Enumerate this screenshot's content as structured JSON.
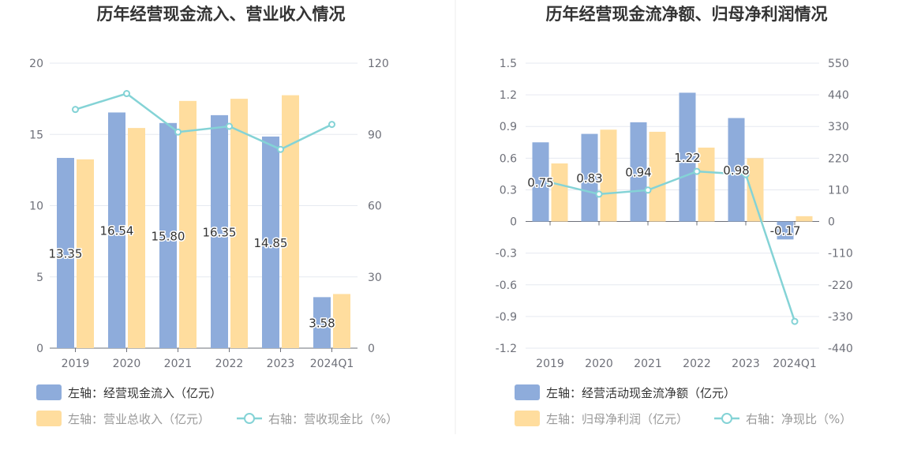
{
  "chart_data": [
    {
      "type": "bar",
      "title": "历年经营现金流入、营业收入情况",
      "categories": [
        "2019",
        "2020",
        "2021",
        "2022",
        "2023",
        "2024Q1"
      ],
      "series": [
        {
          "name": "左轴：经营现金流入（亿元）",
          "axis": "left",
          "kind": "bar",
          "color": "#8eacdb",
          "values": [
            13.35,
            16.54,
            15.8,
            16.35,
            14.85,
            3.58
          ],
          "labels": [
            "13.35",
            "16.54",
            "15.80",
            "16.35",
            "14.85",
            "3.58"
          ]
        },
        {
          "name": "左轴：营业总收入（亿元）",
          "axis": "left",
          "kind": "bar",
          "color": "#ffdd9e",
          "values": [
            13.25,
            15.45,
            17.35,
            17.5,
            17.75,
            3.8
          ]
        },
        {
          "name": "右轴：营收现金比（%）",
          "axis": "right",
          "kind": "line",
          "color": "#84d3d6",
          "values": [
            100.5,
            107.2,
            91.0,
            93.4,
            83.7,
            94.2
          ]
        }
      ],
      "left_axis": {
        "ticks": [
          "0",
          "5",
          "10",
          "15",
          "20"
        ],
        "min": 0,
        "max": 20
      },
      "right_axis": {
        "ticks": [
          "0",
          "30",
          "60",
          "90",
          "120"
        ],
        "min": 0,
        "max": 120
      }
    },
    {
      "type": "bar",
      "title": "历年经营现金流净额、归母净利润情况",
      "categories": [
        "2019",
        "2020",
        "2021",
        "2022",
        "2023",
        "2024Q1"
      ],
      "series": [
        {
          "name": "左轴：经营活动现金流净额（亿元）",
          "axis": "left",
          "kind": "bar",
          "color": "#8eacdb",
          "values": [
            0.75,
            0.83,
            0.94,
            1.22,
            0.98,
            -0.17
          ],
          "labels": [
            "0.75",
            "0.83",
            "0.94",
            "1.22",
            "0.98",
            "-0.17"
          ]
        },
        {
          "name": "左轴：归母净利润（亿元）",
          "axis": "left",
          "kind": "bar",
          "color": "#ffdd9e",
          "values": [
            0.55,
            0.87,
            0.85,
            0.7,
            0.6,
            0.05
          ]
        },
        {
          "name": "右轴：净现比（%）",
          "axis": "right",
          "kind": "line",
          "color": "#84d3d6",
          "values": [
            136,
            95,
            109,
            174,
            163,
            -347
          ]
        }
      ],
      "left_axis": {
        "ticks": [
          "-1.2",
          "-0.9",
          "-0.6",
          "-0.3",
          "0",
          "0.3",
          "0.6",
          "0.9",
          "1.2",
          "1.5"
        ],
        "min": -1.2,
        "max": 1.5
      },
      "right_axis": {
        "ticks": [
          "-440",
          "-330",
          "-220",
          "-110",
          "0",
          "110",
          "220",
          "330",
          "440",
          "550"
        ],
        "min": -440,
        "max": 550
      }
    }
  ]
}
